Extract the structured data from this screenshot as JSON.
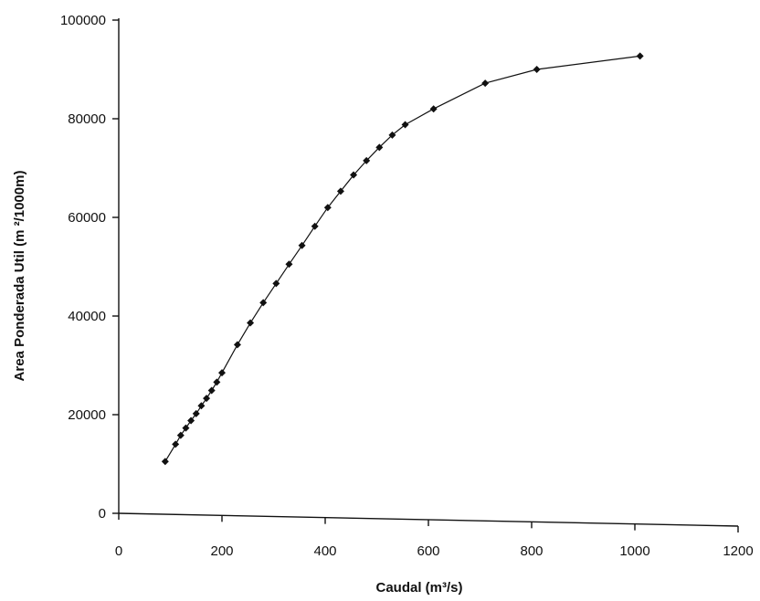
{
  "chart_data": {
    "type": "line",
    "title": "",
    "xlabel": "Caudal (m³/s)",
    "ylabel": "Area Ponderada Util (m ²/1000m)",
    "xlim": [
      0,
      1200
    ],
    "ylim": [
      0,
      100000
    ],
    "x_ticks": [
      0,
      200,
      400,
      600,
      800,
      1000,
      1200
    ],
    "y_ticks": [
      0,
      20000,
      40000,
      60000,
      80000,
      100000
    ],
    "x_tick_labels": [
      "0",
      "200",
      "400",
      "600",
      "800",
      "1000",
      "1200"
    ],
    "y_tick_labels": [
      "0",
      "20000",
      "40000",
      "60000",
      "80000",
      "100000"
    ],
    "grid": false,
    "legend": "none",
    "marker": "diamond",
    "color": "#111111",
    "series": [
      {
        "x": [
          90,
          110,
          120,
          130,
          140,
          150,
          160,
          170,
          180,
          190,
          200,
          230,
          255,
          280,
          305,
          330,
          355,
          380,
          405,
          430,
          455,
          480,
          505,
          530,
          555,
          610,
          710,
          810,
          1010
        ],
        "y": [
          10500,
          14000,
          15800,
          17300,
          18800,
          20200,
          21800,
          23300,
          24900,
          26600,
          28500,
          34200,
          38600,
          42700,
          46600,
          50500,
          54300,
          58200,
          62000,
          65300,
          68600,
          71500,
          74200,
          76700,
          78800,
          82000,
          87200,
          90000,
          92700
        ]
      }
    ]
  }
}
